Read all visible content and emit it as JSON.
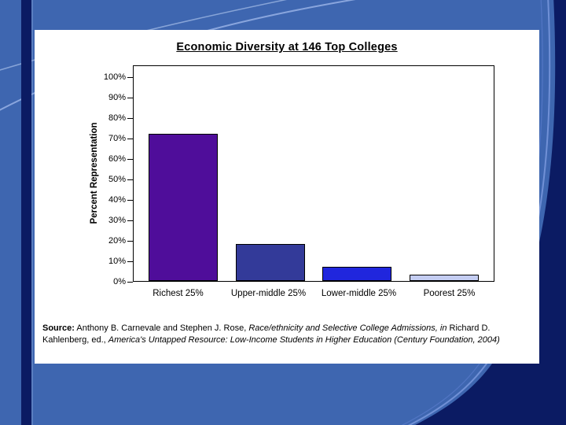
{
  "slide": {
    "background_color": "#3e66b0",
    "accent_dark": "#0b1b63",
    "accent_line": "#9cb5e8"
  },
  "chart_data": {
    "type": "bar",
    "title": "Economic Diversity at 146 Top Colleges",
    "xlabel": "",
    "ylabel": "Percent Representation",
    "categories": [
      "Richest 25%",
      "Upper-middle 25%",
      "Lower-middle 25%",
      "Poorest 25%"
    ],
    "values": [
      72,
      18,
      7,
      3
    ],
    "bar_colors": [
      "#4f0d9a",
      "#333a99",
      "#2026dd",
      "#c4cdf2"
    ],
    "ylim": [
      0,
      100
    ],
    "ytick_step": 10,
    "ytick_labels": [
      "0%",
      "10%",
      "20%",
      "30%",
      "40%",
      "50%",
      "60%",
      "70%",
      "80%",
      "90%",
      "100%"
    ],
    "grid": false,
    "legend": false
  },
  "source": {
    "segments": [
      {
        "text": "Source:",
        "bold": true,
        "italic": false
      },
      {
        "text": " Anthony B. Carnevale and Stephen J. Rose, ",
        "bold": false,
        "italic": false
      },
      {
        "text": "Race/ethnicity and Selective College Admissions, in ",
        "bold": false,
        "italic": true
      },
      {
        "text": "Richard D. Kahlenberg, ed., ",
        "bold": false,
        "italic": false
      },
      {
        "text": "America's Untapped Resource: Low-Income Students in Higher Education (Century Foundation, 2004)",
        "bold": false,
        "italic": true
      }
    ]
  }
}
